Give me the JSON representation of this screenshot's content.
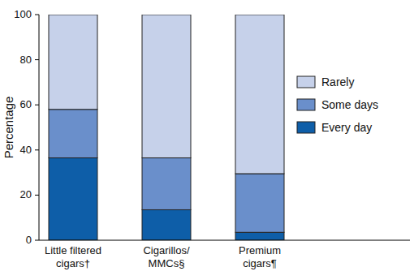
{
  "chart_data": {
    "type": "bar",
    "stacked": true,
    "y_label": "Percentage",
    "categories": [
      "Little filtered\ncigars†",
      "Cigarillos/\nMMCs§",
      "Premium\ncigars¶"
    ],
    "series": [
      {
        "name": "Every day",
        "color": "#0e5ea8",
        "values": [
          36.5,
          13.5,
          3.5
        ]
      },
      {
        "name": "Some days",
        "color": "#6a8fcb",
        "values": [
          21.5,
          23,
          26
        ]
      },
      {
        "name": "Rarely",
        "color": "#c6d1ea",
        "values": [
          42,
          63.5,
          70.5
        ]
      }
    ],
    "ylim": [
      0,
      100
    ],
    "yticks": [
      0,
      20,
      40,
      60,
      80,
      100
    ],
    "grid": false,
    "legend": "right"
  }
}
